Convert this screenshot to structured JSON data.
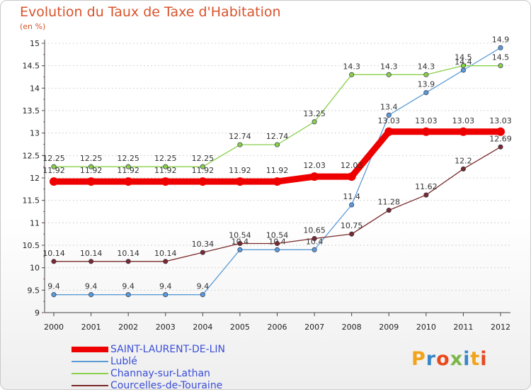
{
  "title": "Evolution du Taux de Taxe d'Habitation",
  "subtitle": "(en %)",
  "logo": {
    "text": "Proxiti",
    "letters": [
      {
        "ch": "P",
        "color": "#f2a31b"
      },
      {
        "ch": "r",
        "color": "#3a86c8"
      },
      {
        "ch": "o",
        "color": "#e8491d"
      },
      {
        "ch": "x",
        "color": "#7ab648"
      },
      {
        "ch": "i",
        "color": "#3a86c8"
      },
      {
        "ch": "t",
        "color": "#f2a31b"
      },
      {
        "ch": "i",
        "color": "#e8491d"
      }
    ]
  },
  "chart_data": {
    "type": "line",
    "title": "Evolution du Taux de Taxe d'Habitation",
    "ylabel": "(en %)",
    "xlabel": "",
    "x": [
      "2000",
      "2001",
      "2002",
      "2003",
      "2004",
      "2005",
      "2006",
      "2007",
      "2008",
      "2009",
      "2010",
      "2011",
      "2012"
    ],
    "ylim": [
      9,
      15
    ],
    "yticks": [
      "9",
      "9.5",
      "10",
      "10.5",
      "11",
      "11.5",
      "12",
      "12.5",
      "13",
      "13.5",
      "14",
      "14.5",
      "15"
    ],
    "grid": "horizontal dashed",
    "legend_position": "bottom-left",
    "series": [
      {
        "name": "Lublé",
        "color": "#5b9bd5",
        "values": [
          9.4,
          9.4,
          9.4,
          9.4,
          9.4,
          10.4,
          10.4,
          10.4,
          11.4,
          13.4,
          13.9,
          14.4,
          14.9
        ],
        "labels": [
          "9.4",
          "9.4",
          "9.4",
          "9.4",
          "9.4",
          "10.4",
          "10.4",
          "10.4",
          "11.4",
          "13.4",
          "13.9",
          "14.4",
          "14.9"
        ]
      },
      {
        "name": "Channay-sur-Lathan",
        "color": "#8ad04a",
        "values": [
          12.25,
          12.25,
          12.25,
          12.25,
          12.25,
          12.74,
          12.74,
          13.25,
          14.3,
          14.3,
          14.3,
          14.5,
          14.5
        ],
        "labels": [
          "12.25",
          "12.25",
          "12.25",
          "12.25",
          "12.25",
          "12.74",
          "12.74",
          "13.25",
          "14.3",
          "14.3",
          "14.3",
          "14.5",
          "14.5"
        ]
      },
      {
        "name": "Courcelles-de-Touraine",
        "color": "#7a2a2a",
        "values": [
          10.14,
          10.14,
          10.14,
          10.14,
          10.34,
          10.54,
          10.54,
          10.65,
          10.75,
          11.28,
          11.62,
          12.2,
          12.69
        ],
        "labels": [
          "10.14",
          "10.14",
          "10.14",
          "10.14",
          "10.34",
          "10.54",
          "10.54",
          "10.65",
          "10.75",
          "11.28",
          "11.62",
          "12.2",
          "12.69"
        ]
      },
      {
        "name": "SAINT-LAURENT-DE-LIN",
        "color": "#ee0000",
        "highlight": true,
        "values": [
          11.92,
          11.92,
          11.92,
          11.92,
          11.92,
          11.92,
          11.92,
          12.03,
          12.03,
          13.03,
          13.03,
          13.03,
          13.03
        ],
        "labels": [
          "11.92",
          "11.92",
          "11.92",
          "11.92",
          "11.92",
          "11.92",
          "11.92",
          "12.03",
          "12.03",
          "13.03",
          "13.03",
          "13.03",
          "13.03"
        ]
      }
    ],
    "legend_order": [
      "SAINT-LAURENT-DE-LIN",
      "Lublé",
      "Channay-sur-Lathan",
      "Courcelles-de-Touraine"
    ]
  }
}
